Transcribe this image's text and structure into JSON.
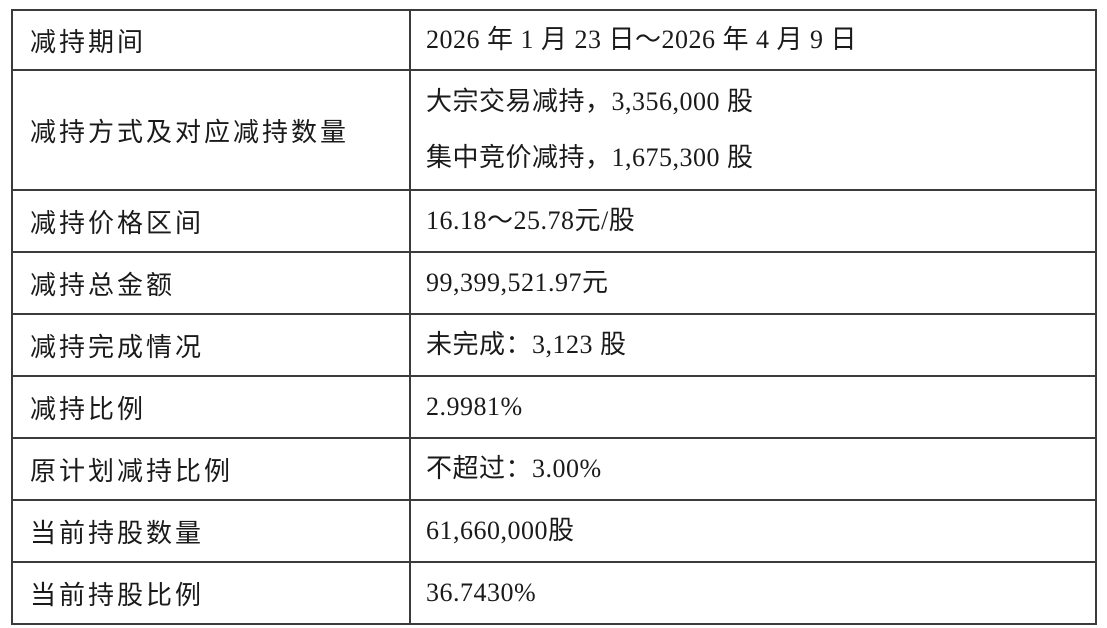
{
  "page": {
    "background_color": "#ffffff",
    "border_color": "#3b3b3b",
    "text_color": "#1a1a1a"
  },
  "table": {
    "rows": [
      {
        "label": "减持期间",
        "values": [
          "2026 年 1 月 23 日～2026 年 4 月 9 日"
        ]
      },
      {
        "label": "减持方式及对应减持数量",
        "values": [
          "大宗交易减持，3,356,000 股",
          "集中竞价减持，1,675,300 股"
        ]
      },
      {
        "label": "减持价格区间",
        "values": [
          "16.18～25.78元/股"
        ]
      },
      {
        "label": "减持总金额",
        "values": [
          "99,399,521.97元"
        ]
      },
      {
        "label": "减持完成情况",
        "values": [
          "未完成：3,123 股"
        ]
      },
      {
        "label": "减持比例",
        "values": [
          "2.9981%"
        ]
      },
      {
        "label": "原计划减持比例",
        "values": [
          "不超过：3.00%"
        ]
      },
      {
        "label": "当前持股数量",
        "values": [
          "61,660,000股"
        ]
      },
      {
        "label": "当前持股比例",
        "values": [
          "36.7430%"
        ]
      }
    ]
  }
}
